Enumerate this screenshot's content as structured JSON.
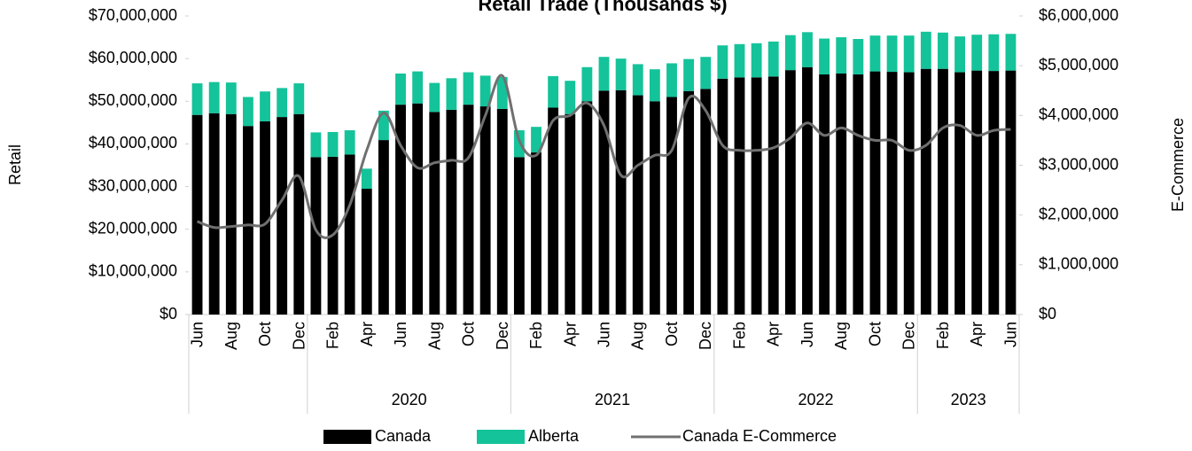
{
  "chart_data": {
    "type": "bar",
    "stacked": true,
    "title": "Retail Trade (Thousands $)",
    "ylabel": "Retail",
    "y2label": "E-Commerce",
    "groups": [
      {
        "months": [
          "Jun",
          null,
          "Aug",
          null,
          "Oct",
          null,
          "Dec"
        ]
      },
      {
        "label": "2020",
        "months": [
          null,
          "Feb",
          null,
          "Apr",
          null,
          "Jun",
          null,
          "Aug",
          null,
          "Oct",
          null,
          "Dec"
        ]
      },
      {
        "label": "2021",
        "months": [
          null,
          "Feb",
          null,
          "Apr",
          null,
          "Jun",
          null,
          "Aug",
          null,
          "Oct",
          null,
          "Dec"
        ]
      },
      {
        "label": "2022",
        "months": [
          null,
          "Feb",
          null,
          "Apr",
          null,
          "Jun",
          null,
          "Aug",
          null,
          "Oct",
          null,
          "Dec"
        ]
      },
      {
        "label": "2023",
        "months": [
          null,
          "Feb",
          null,
          "Apr",
          null,
          "Jun"
        ]
      }
    ],
    "series": [
      {
        "name": "Canada",
        "color": "#000000",
        "values": [
          46800000,
          47200000,
          47000000,
          44200000,
          45300000,
          46300000,
          47000000,
          36900000,
          37000000,
          37500000,
          29500000,
          40900000,
          49200000,
          49500000,
          47500000,
          48000000,
          49200000,
          48800000,
          48200000,
          36900000,
          38000000,
          48500000,
          47000000,
          50000000,
          52500000,
          52600000,
          51400000,
          50000000,
          51000000,
          52400000,
          52900000,
          55300000,
          55600000,
          55600000,
          55800000,
          57300000,
          58000000,
          56300000,
          56500000,
          56300000,
          57000000,
          56900000,
          56800000,
          57600000,
          57600000,
          56800000,
          57200000,
          57100000,
          57200000
        ]
      },
      {
        "name": "Alberta",
        "color": "#14c39a",
        "values": [
          7400000,
          7300000,
          7400000,
          6800000,
          7000000,
          6800000,
          7200000,
          5800000,
          5800000,
          5700000,
          4700000,
          6900000,
          7300000,
          7500000,
          6800000,
          7400000,
          7600000,
          7200000,
          7500000,
          6300000,
          6000000,
          7400000,
          7800000,
          8000000,
          7900000,
          7400000,
          7300000,
          7500000,
          7900000,
          7500000,
          7500000,
          7800000,
          7800000,
          8000000,
          8200000,
          8200000,
          8200000,
          8400000,
          8500000,
          8300000,
          8400000,
          8500000,
          8600000,
          8700000,
          8500000,
          8400000,
          8400000,
          8600000,
          8600000
        ]
      },
      {
        "name": "Canada E-Commerce",
        "color": "#707070",
        "axis": "y2",
        "values": [
          1870000,
          1750000,
          1770000,
          1800000,
          1820000,
          2300000,
          2780000,
          1700000,
          1600000,
          2200000,
          3300000,
          4050000,
          3400000,
          2950000,
          3050000,
          3100000,
          3150000,
          4000000,
          4800000,
          3500000,
          3200000,
          3900000,
          4000000,
          4250000,
          3800000,
          2800000,
          3000000,
          3200000,
          3300000,
          4350000,
          4100000,
          3400000,
          3300000,
          3300000,
          3350000,
          3550000,
          3850000,
          3600000,
          3750000,
          3600000,
          3500000,
          3500000,
          3300000,
          3400000,
          3750000,
          3800000,
          3600000,
          3700000,
          3720000
        ]
      }
    ],
    "ylim": [
      0,
      70000000
    ],
    "yticks": [
      {
        "value": 0,
        "label": "$0"
      },
      {
        "value": 10000000,
        "label": "$10,000,000"
      },
      {
        "value": 20000000,
        "label": "$20,000,000"
      },
      {
        "value": 30000000,
        "label": "$30,000,000"
      },
      {
        "value": 40000000,
        "label": "$40,000,000"
      },
      {
        "value": 50000000,
        "label": "$50,000,000"
      },
      {
        "value": 60000000,
        "label": "$60,000,000"
      },
      {
        "value": 70000000,
        "label": "$70,000,000"
      }
    ],
    "y2lim": [
      0,
      6000000
    ],
    "y2ticks": [
      {
        "value": 0,
        "label": "$0"
      },
      {
        "value": 1000000,
        "label": "$1,000,000"
      },
      {
        "value": 2000000,
        "label": "$2,000,000"
      },
      {
        "value": 3000000,
        "label": "$3,000,000"
      },
      {
        "value": 4000000,
        "label": "$4,000,000"
      },
      {
        "value": 5000000,
        "label": "$5,000,000"
      },
      {
        "value": 6000000,
        "label": "$6,000,000"
      }
    ],
    "legend": "bottom"
  }
}
